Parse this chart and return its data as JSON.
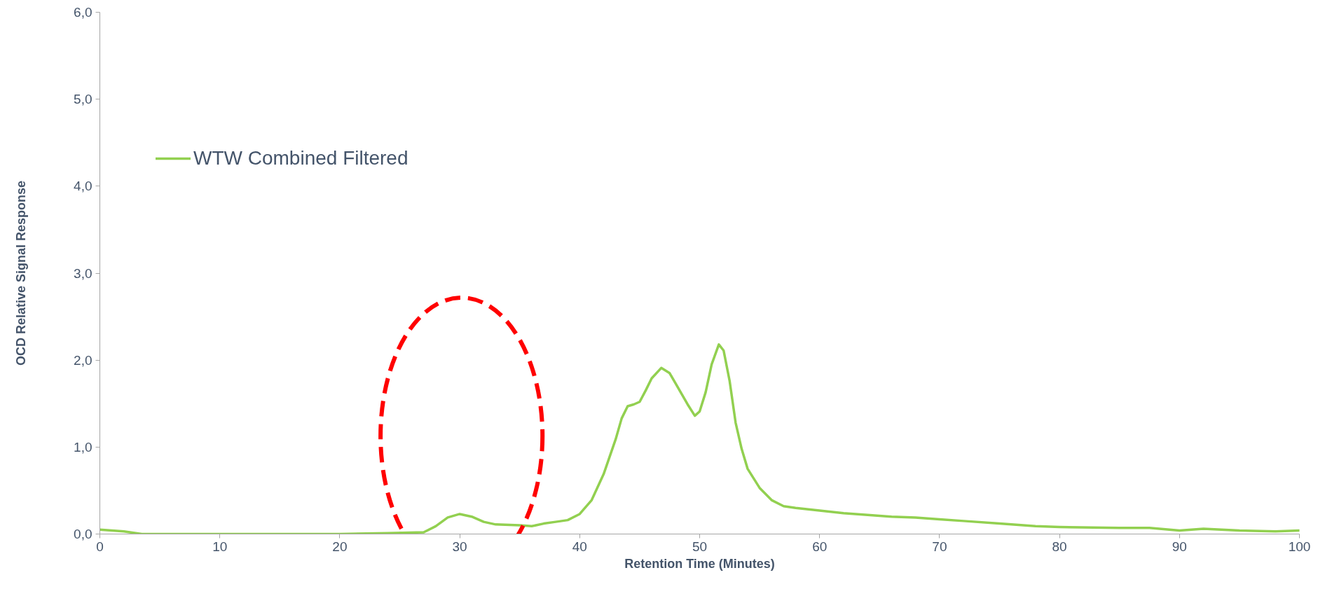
{
  "chart_data": {
    "type": "line",
    "xlabel": "Retention Time (Minutes)",
    "ylabel": "OCD Relative Signal Response",
    "x": [
      0,
      2,
      3.5,
      6,
      10,
      15,
      20,
      24,
      27,
      28,
      29,
      30,
      31,
      32,
      33,
      35,
      36,
      37,
      38,
      39,
      40,
      41,
      42,
      43,
      43.5,
      44,
      44.5,
      45,
      45.5,
      46,
      46.8,
      47.5,
      48,
      49,
      49.6,
      50,
      50.5,
      51,
      51.6,
      52,
      52.5,
      53,
      53.5,
      54,
      55,
      56,
      57,
      58,
      60,
      62,
      64,
      66,
      68,
      70,
      72,
      75,
      78,
      80,
      85,
      87.5,
      90,
      92,
      95,
      98,
      100
    ],
    "series": [
      {
        "name": "WTW Combined Filtered",
        "color": "#92d050",
        "values": [
          0.05,
          0.03,
          0.0,
          0.0,
          0.0,
          0.0,
          0.0,
          0.01,
          0.02,
          0.09,
          0.19,
          0.23,
          0.2,
          0.14,
          0.11,
          0.1,
          0.09,
          0.12,
          0.14,
          0.16,
          0.23,
          0.39,
          0.69,
          1.09,
          1.33,
          1.47,
          1.49,
          1.52,
          1.65,
          1.79,
          1.91,
          1.85,
          1.73,
          1.49,
          1.36,
          1.41,
          1.63,
          1.95,
          2.18,
          2.11,
          1.76,
          1.28,
          0.98,
          0.75,
          0.53,
          0.39,
          0.32,
          0.3,
          0.27,
          0.24,
          0.22,
          0.2,
          0.19,
          0.17,
          0.15,
          0.12,
          0.09,
          0.08,
          0.07,
          0.07,
          0.04,
          0.06,
          0.04,
          0.03,
          0.04
        ]
      }
    ],
    "xlim": [
      0,
      100
    ],
    "xticks": [
      0,
      10,
      20,
      30,
      40,
      50,
      60,
      70,
      80,
      90,
      100
    ],
    "ylim": [
      0,
      6
    ],
    "yticks": [
      {
        "value": 0,
        "label": "0,0"
      },
      {
        "value": 1,
        "label": "1,0"
      },
      {
        "value": 2,
        "label": "2,0"
      },
      {
        "value": 3,
        "label": "3,0"
      },
      {
        "value": 4,
        "label": "4,0"
      },
      {
        "value": 5,
        "label": "5,0"
      },
      {
        "value": 6,
        "label": "6,0"
      }
    ],
    "legend": "top left",
    "grid": false,
    "marker": "none",
    "line_style": "solid"
  }
}
